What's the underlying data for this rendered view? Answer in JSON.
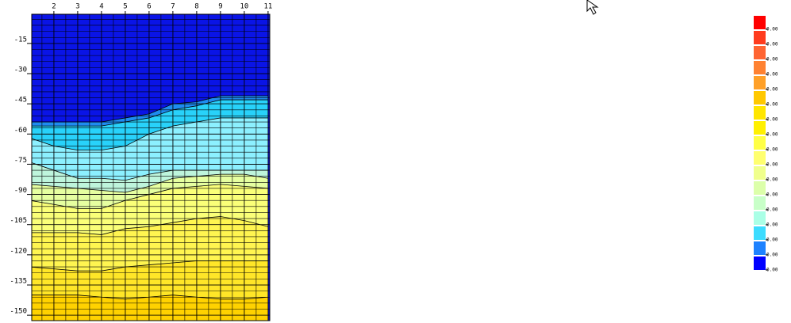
{
  "chart_data": {
    "type": "contour",
    "x": [
      1,
      2,
      3,
      4,
      5,
      6,
      7,
      8,
      9,
      10,
      11
    ],
    "xlim": [
      1.07,
      11.07
    ],
    "xticks": [
      2,
      3,
      4,
      5,
      6,
      7,
      8,
      9,
      10,
      11
    ],
    "ylim": [
      -0.5,
      -152.7
    ],
    "yticks": [
      -15,
      -30,
      -45,
      -60,
      -75,
      -90,
      -105,
      -120,
      -135,
      -150
    ],
    "grid": true,
    "top_color": "#0a14e6",
    "contours": [
      {
        "color": "#1e8cf0",
        "values": [
          -54,
          -54,
          -54,
          -54,
          -52,
          -50,
          -45,
          -44,
          -41,
          -41,
          -41
        ]
      },
      {
        "color": "#28d2fa",
        "values": [
          -56,
          -56,
          -56,
          -56,
          -54,
          -52,
          -48,
          -46,
          -43,
          -43,
          -43
        ]
      },
      {
        "color": "#8cf0ff",
        "values": [
          -62,
          -66,
          -68,
          -68,
          -66,
          -60,
          -56,
          -54,
          -52,
          -52,
          -52
        ]
      },
      {
        "color": "#bef5dc",
        "values": [
          -74,
          -78,
          -82,
          -82,
          -83,
          -80,
          -78,
          -78,
          -78,
          -78,
          -78
        ]
      },
      {
        "color": "#e6ffa0",
        "values": [
          -85,
          -86,
          -87,
          -88,
          -89,
          -86,
          -82,
          -81,
          -80,
          -80,
          -82
        ]
      },
      {
        "color": "#faff78",
        "values": [
          -93,
          -95,
          -97,
          -97,
          -93,
          -90,
          -87,
          -86,
          -85,
          -86,
          -87
        ]
      },
      {
        "color": "#fff550",
        "values": [
          -109,
          -109,
          -109,
          -110,
          -107,
          -106,
          -104,
          -102,
          -101,
          -103,
          -106
        ]
      },
      {
        "color": "#ffe628",
        "values": [
          -126,
          -127,
          -128,
          -128,
          -126,
          -125,
          -124,
          -123,
          -123,
          -123,
          -123
        ]
      },
      {
        "color": "#ffd200",
        "values": [
          -140,
          -140,
          -140,
          -141,
          -142,
          -141,
          -140,
          -141,
          -142,
          -142,
          -141
        ]
      }
    ],
    "colorbar": {
      "colors": [
        "#ff0000",
        "#ff3c1e",
        "#ff6432",
        "#ff8232",
        "#ffa028",
        "#ffc800",
        "#ffe600",
        "#fff000",
        "#ffff46",
        "#ffff6e",
        "#f0ff8c",
        "#dcffaa",
        "#c8ffc8",
        "#aaffe6",
        "#3cdcff",
        "#1e82ff",
        "#0000ff"
      ],
      "labels": [
        "0.00",
        "0.00",
        "0.00",
        "0.00",
        "0.00",
        "0.00",
        "0.00",
        "0.00",
        "0.00",
        "0.00",
        "0.00",
        "0.00",
        "0.00",
        "0.00",
        "0.00",
        "0.00",
        "0.00"
      ]
    }
  }
}
